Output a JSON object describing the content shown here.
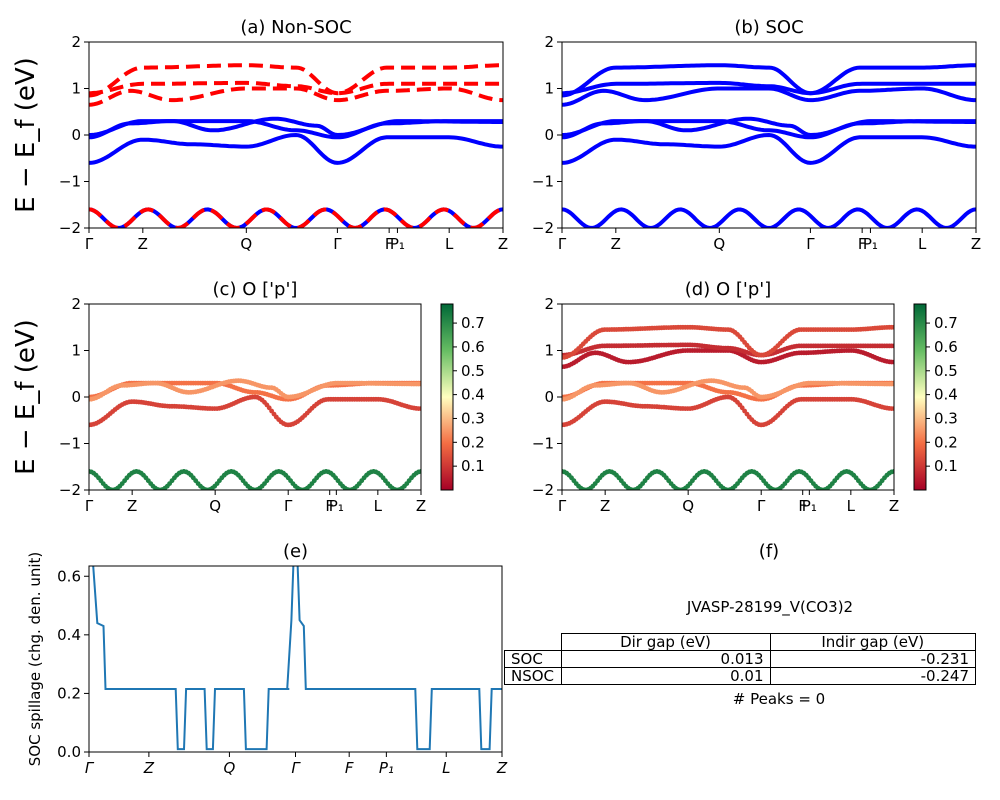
{
  "figure": {
    "panels": [
      "a",
      "b",
      "c",
      "d",
      "e"
    ],
    "colormap": "RdYlGn",
    "colors": {
      "nonsoc_bands": "#ff0000",
      "soc_bands": "#0000ff",
      "spillage_line": "#1f77b4"
    }
  },
  "chart_data": [
    {
      "id": "a",
      "type": "line",
      "title": "(a) Non-SOC",
      "ylabel": "E − E_f (eV)",
      "ylim": [
        -2,
        2
      ],
      "yticks": [
        "−2",
        "−1",
        "0",
        "1",
        "2"
      ],
      "xticks": [
        "Γ",
        "Z",
        "Q",
        "Γ",
        "F",
        "P₁",
        "L",
        "Z"
      ],
      "xtick_pos": [
        0,
        0.13,
        0.38,
        0.6,
        0.725,
        0.745,
        0.87,
        1.0
      ],
      "series": [
        {
          "color": "#0000ff",
          "style": "solid",
          "bands": [
            "valence_low",
            "valence_mid",
            "valence_top1",
            "valence_top2"
          ]
        },
        {
          "color": "#ff0000",
          "style": "dashed",
          "bands": [
            "valence_low",
            "cond_lo",
            "cond_mid",
            "cond_hi"
          ]
        }
      ]
    },
    {
      "id": "b",
      "type": "line",
      "title": "(b) SOC",
      "ylim": [
        -2,
        2
      ],
      "yticks": [
        "−2",
        "−1",
        "0",
        "1",
        "2"
      ],
      "xticks": [
        "Γ",
        "Z",
        "Q",
        "Γ",
        "F",
        "P₁",
        "L",
        "Z"
      ],
      "series": [
        {
          "color": "#0000ff",
          "style": "solid",
          "bands": [
            "valence_low",
            "valence_mid",
            "valence_top1",
            "valence_top2",
            "cond_lo",
            "cond_mid",
            "cond_hi"
          ]
        }
      ]
    },
    {
      "id": "c",
      "type": "scatter",
      "title": "(c)  O ['p']",
      "ylabel": "E − E_f (eV)",
      "ylim": [
        -2,
        2
      ],
      "yticks": [
        "−2",
        "−1",
        "0",
        "1",
        "2"
      ],
      "xticks": [
        "Γ",
        "Z",
        "Q",
        "Γ",
        "F",
        "P₁",
        "L",
        "Z"
      ],
      "colorbar": {
        "min": 0.0,
        "max": 0.78,
        "ticks": [
          "0.1",
          "0.2",
          "0.3",
          "0.4",
          "0.5",
          "0.6",
          "0.7"
        ]
      },
      "bands": [
        {
          "band": "valence_low",
          "weight": 0.72
        },
        {
          "band": "valence_mid",
          "weight": 0.12
        },
        {
          "band": "valence_top1",
          "weight": 0.2
        },
        {
          "band": "valence_top2",
          "weight": 0.25
        }
      ]
    },
    {
      "id": "d",
      "type": "scatter",
      "title": "(d) O ['p']",
      "ylim": [
        -2,
        2
      ],
      "yticks": [
        "−2",
        "−1",
        "0",
        "1",
        "2"
      ],
      "xticks": [
        "Γ",
        "Z",
        "Q",
        "Γ",
        "F",
        "P₁",
        "L",
        "Z"
      ],
      "colorbar": {
        "min": 0.0,
        "max": 0.78,
        "ticks": [
          "0.1",
          "0.2",
          "0.3",
          "0.4",
          "0.5",
          "0.6",
          "0.7"
        ]
      },
      "bands": [
        {
          "band": "valence_low",
          "weight": 0.72
        },
        {
          "band": "valence_mid",
          "weight": 0.12
        },
        {
          "band": "valence_top1",
          "weight": 0.2
        },
        {
          "band": "valence_top2",
          "weight": 0.25
        },
        {
          "band": "cond_lo",
          "weight": 0.05
        },
        {
          "band": "cond_mid",
          "weight": 0.08
        },
        {
          "band": "cond_hi",
          "weight": 0.13
        }
      ]
    },
    {
      "id": "e",
      "type": "line",
      "title": "(e)",
      "ylabel": "SOC spillage (chg. den. unit)",
      "ylim": [
        0,
        0.635
      ],
      "yticks": [
        "0.0",
        "0.2",
        "0.4",
        "0.6"
      ],
      "ytick_values": [
        0,
        0.2,
        0.4,
        0.6
      ],
      "xticks": [
        "Γ",
        "Z",
        "Q",
        "Γ",
        "F",
        "P₁",
        "L",
        "Z"
      ],
      "xtick_pos": [
        0,
        0.145,
        0.34,
        0.5,
        0.63,
        0.72,
        0.865,
        1.0
      ],
      "x": [
        0,
        0.01,
        0.02,
        0.035,
        0.04,
        0.21,
        0.215,
        0.23,
        0.235,
        0.28,
        0.285,
        0.3,
        0.305,
        0.375,
        0.38,
        0.43,
        0.435,
        0.48,
        0.485,
        0.46,
        0.465,
        0.47,
        0.475,
        0.48,
        0.49,
        0.495,
        0.5,
        0.505,
        0.51,
        0.52,
        0.525,
        0.53,
        0.54,
        0.79,
        0.795,
        0.825,
        0.83,
        0.945,
        0.95,
        0.97,
        0.975,
        1.0
      ],
      "y": [
        0.64,
        0.64,
        0.44,
        0.43,
        0.215,
        0.215,
        0.01,
        0.01,
        0.215,
        0.215,
        0.01,
        0.01,
        0.215,
        0.215,
        0.01,
        0.01,
        0.215,
        0.215,
        0.215,
        0.215,
        0.215,
        0.215,
        0.215,
        0.215,
        0.45,
        0.64,
        0.64,
        0.64,
        0.45,
        0.43,
        0.215,
        0.215,
        0.215,
        0.215,
        0.01,
        0.01,
        0.215,
        0.215,
        0.01,
        0.01,
        0.215,
        0.215
      ]
    }
  ],
  "bands_shape": {
    "valence_low": {
      "base": -1.8,
      "amp": 0.2,
      "freq": 7
    },
    "valence_mid": {
      "path": [
        [
          0,
          -0.6
        ],
        [
          0.13,
          -0.1
        ],
        [
          0.25,
          -0.2
        ],
        [
          0.38,
          -0.25
        ],
        [
          0.5,
          0.0
        ],
        [
          0.6,
          -0.6
        ],
        [
          0.72,
          -0.05
        ],
        [
          0.87,
          -0.05
        ],
        [
          1.0,
          -0.25
        ]
      ]
    },
    "valence_top1": {
      "path": [
        [
          0,
          0.0
        ],
        [
          0.13,
          0.3
        ],
        [
          0.38,
          0.3
        ],
        [
          0.5,
          0.1
        ],
        [
          0.6,
          -0.05
        ],
        [
          0.72,
          0.25
        ],
        [
          0.87,
          0.3
        ],
        [
          1.0,
          0.3
        ]
      ]
    },
    "valence_top2": {
      "path": [
        [
          0,
          -0.05
        ],
        [
          0.1,
          0.25
        ],
        [
          0.2,
          0.3
        ],
        [
          0.3,
          0.1
        ],
        [
          0.45,
          0.35
        ],
        [
          0.55,
          0.2
        ],
        [
          0.6,
          0.0
        ],
        [
          0.75,
          0.3
        ],
        [
          1.0,
          0.28
        ]
      ]
    },
    "cond_lo": {
      "path": [
        [
          0,
          0.65
        ],
        [
          0.1,
          0.95
        ],
        [
          0.2,
          0.75
        ],
        [
          0.38,
          1.0
        ],
        [
          0.5,
          1.0
        ],
        [
          0.6,
          0.75
        ],
        [
          0.72,
          0.95
        ],
        [
          0.87,
          1.0
        ],
        [
          1.0,
          0.75
        ]
      ]
    },
    "cond_mid": {
      "path": [
        [
          0,
          0.9
        ],
        [
          0.13,
          1.1
        ],
        [
          0.38,
          1.12
        ],
        [
          0.5,
          1.05
        ],
        [
          0.6,
          0.9
        ],
        [
          0.72,
          1.1
        ],
        [
          0.87,
          1.1
        ],
        [
          1.0,
          1.1
        ]
      ]
    },
    "cond_hi": {
      "path": [
        [
          0,
          0.85
        ],
        [
          0.13,
          1.45
        ],
        [
          0.38,
          1.5
        ],
        [
          0.5,
          1.45
        ],
        [
          0.6,
          0.9
        ],
        [
          0.72,
          1.45
        ],
        [
          0.87,
          1.45
        ],
        [
          1.0,
          1.5
        ]
      ]
    }
  },
  "table": {
    "title": "JVASP-28199_V(CO3)2",
    "header": [
      "",
      "Dir gap (eV)",
      "Indir gap (eV)"
    ],
    "rows": [
      [
        "SOC",
        "0.013",
        "-0.231"
      ],
      [
        "NSOC",
        "0.01",
        "-0.247"
      ]
    ],
    "footer": "# Peaks = 0",
    "panel_title": "(f)"
  }
}
